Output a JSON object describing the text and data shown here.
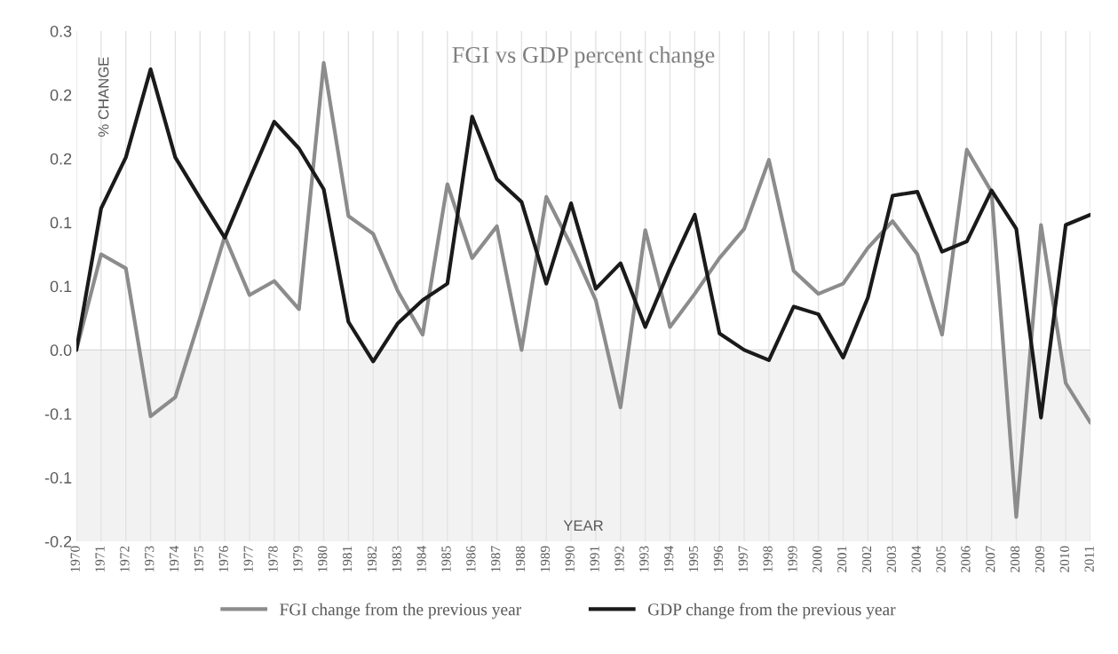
{
  "chart_data": {
    "type": "line",
    "title": "FGI vs GDP percent change",
    "xlabel": "YEAR",
    "ylabel": "% CHANGE",
    "categories": [
      "1970",
      "1971",
      "1972",
      "1973",
      "1974",
      "1975",
      "1976",
      "1977",
      "1978",
      "1979",
      "1980",
      "1981",
      "1982",
      "1983",
      "1984",
      "1985",
      "1986",
      "1987",
      "1988",
      "1989",
      "1990",
      "1991",
      "1992",
      "1993",
      "1994",
      "1995",
      "1996",
      "1997",
      "1998",
      "1999",
      "2000",
      "2001",
      "2002",
      "2003",
      "2004",
      "2005",
      "2006",
      "2007",
      "2008",
      "2009",
      "2010",
      "2011"
    ],
    "series": [
      {
        "name": "FGI change from the previous year",
        "color": "#8c8c8c",
        "values": [
          0,
          0.075,
          0.064,
          -0.052,
          -0.037,
          0.025,
          0.089,
          0.043,
          0.054,
          0.032,
          0.225,
          0.105,
          0.091,
          0.046,
          0.012,
          0.13,
          0.072,
          0.097,
          0.0,
          0.12,
          0.082,
          0.039,
          -0.045,
          0.094,
          0.018,
          0.044,
          0.072,
          0.095,
          0.149,
          0.062,
          0.044,
          0.052,
          0.08,
          0.101,
          0.075,
          0.012,
          0.157,
          0.124,
          -0.131,
          0.098,
          -0.026,
          -0.057
        ]
      },
      {
        "name": "GDP change from the previous year",
        "color": "#1a1a1a",
        "values": [
          0,
          0.111,
          0.151,
          0.22,
          0.151,
          0.119,
          0.088,
          0.134,
          0.179,
          0.158,
          0.126,
          0.022,
          -0.009,
          0.021,
          0.039,
          0.052,
          0.183,
          0.134,
          0.116,
          0.052,
          0.115,
          0.048,
          0.068,
          0.018,
          0.064,
          0.106,
          0.013,
          0.0,
          -0.008,
          0.034,
          0.028,
          -0.006,
          0.041,
          0.121,
          0.124,
          0.077,
          0.085,
          0.125,
          0.095,
          -0.053,
          0.098,
          0.106
        ]
      }
    ],
    "ylim": [
      -0.15,
      0.25
    ],
    "yticks": [
      {
        "value": -0.15,
        "label": "-0.2"
      },
      {
        "value": -0.1,
        "label": "-0.1"
      },
      {
        "value": -0.05,
        "label": "-0.1"
      },
      {
        "value": 0,
        "label": "0.0"
      },
      {
        "value": 0.05,
        "label": "0.1"
      },
      {
        "value": 0.1,
        "label": "0.1"
      },
      {
        "value": 0.15,
        "label": "0.2"
      },
      {
        "value": 0.2,
        "label": "0.2"
      },
      {
        "value": 0.25,
        "label": "0.3"
      }
    ],
    "bands": [
      {
        "axis": "y",
        "from": -0.15,
        "to": 0,
        "color": "#f2f2f2"
      }
    ],
    "grid": "x",
    "legend": "bottom",
    "marker": "none",
    "line_style": "solid"
  }
}
